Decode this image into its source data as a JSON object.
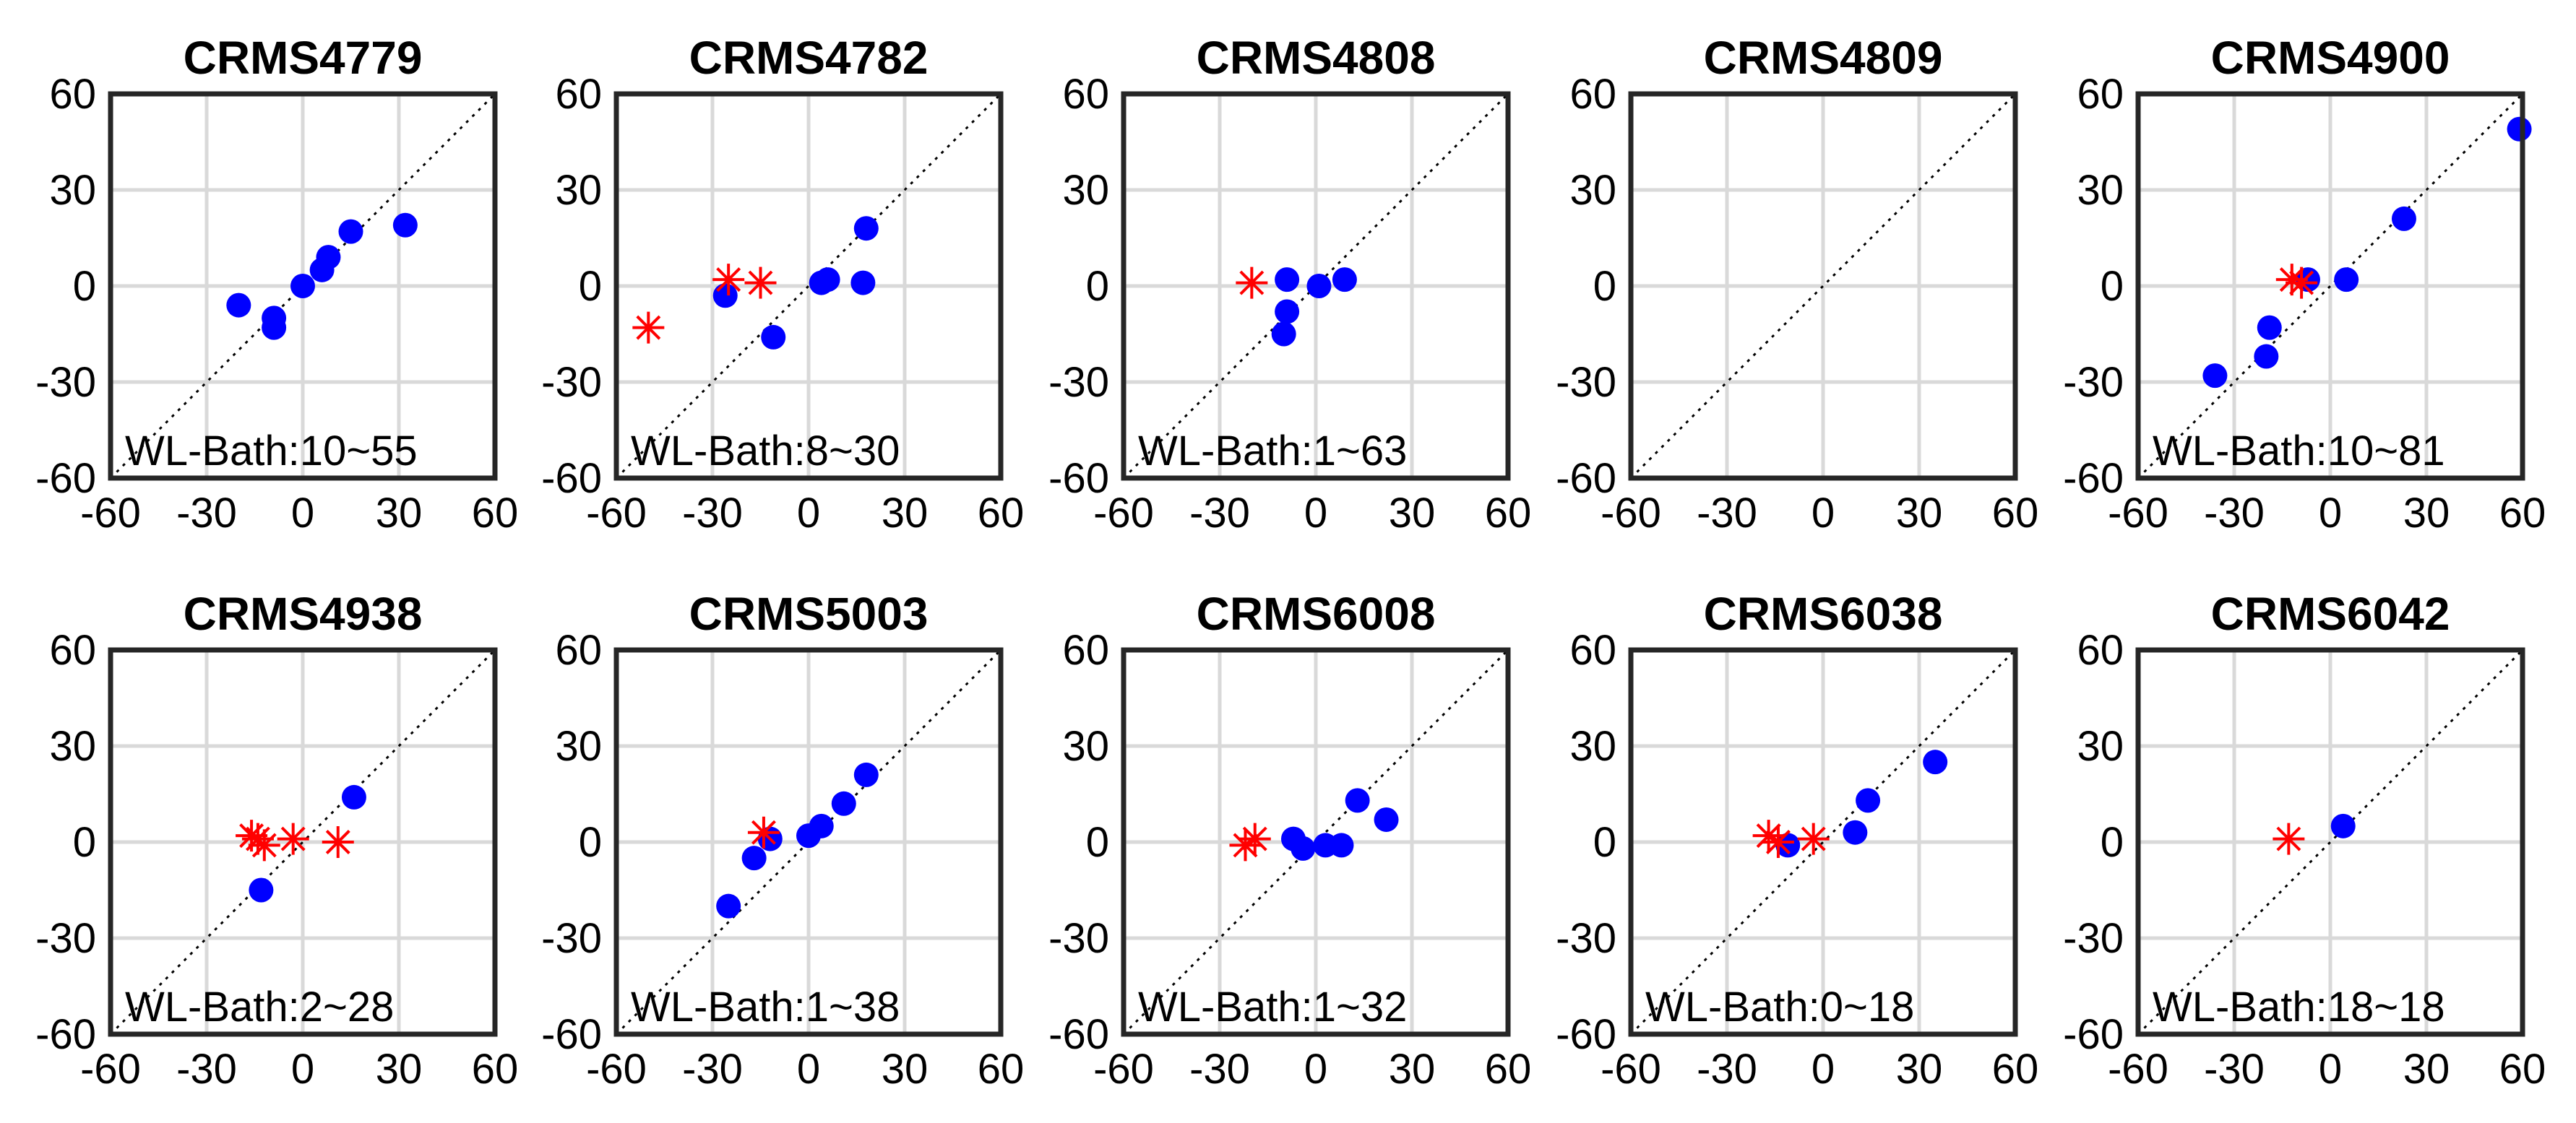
{
  "chart_data": [
    {
      "type": "scatter",
      "title": "CRMS4779",
      "xlim": [
        -60,
        60
      ],
      "ylim": [
        -60,
        60
      ],
      "xticks": [
        "-60",
        "-30",
        "0",
        "30",
        "60"
      ],
      "yticks": [
        "60",
        "30",
        "0",
        "-30",
        "-60"
      ],
      "annotation": "WL-Bath:10~55",
      "series": [
        {
          "name": "circle",
          "marker": "circle",
          "color": "#0000ff",
          "points": [
            [
              -20,
              -6
            ],
            [
              -9,
              -10
            ],
            [
              -9,
              -13
            ],
            [
              0,
              0
            ],
            [
              6,
              5
            ],
            [
              8,
              9
            ],
            [
              15,
              17
            ],
            [
              32,
              19
            ]
          ]
        },
        {
          "name": "star",
          "marker": "star",
          "color": "#ff0000",
          "points": []
        }
      ]
    },
    {
      "type": "scatter",
      "title": "CRMS4782",
      "xlim": [
        -60,
        60
      ],
      "ylim": [
        -60,
        60
      ],
      "xticks": [
        "-60",
        "-30",
        "0",
        "30",
        "60"
      ],
      "yticks": [
        "60",
        "30",
        "0",
        "-30",
        "-60"
      ],
      "annotation": "WL-Bath:8~30",
      "series": [
        {
          "name": "circle",
          "marker": "circle",
          "color": "#0000ff",
          "points": [
            [
              -26,
              -3
            ],
            [
              -11,
              -16
            ],
            [
              4,
              1
            ],
            [
              6,
              2
            ],
            [
              17,
              1
            ],
            [
              18,
              18
            ]
          ]
        },
        {
          "name": "star",
          "marker": "star",
          "color": "#ff0000",
          "points": [
            [
              -50,
              -13
            ],
            [
              -25,
              2
            ],
            [
              -15,
              1
            ]
          ]
        }
      ]
    },
    {
      "type": "scatter",
      "title": "CRMS4808",
      "xlim": [
        -60,
        60
      ],
      "ylim": [
        -60,
        60
      ],
      "xticks": [
        "-60",
        "-30",
        "0",
        "30",
        "60"
      ],
      "yticks": [
        "60",
        "30",
        "0",
        "-30",
        "-60"
      ],
      "annotation": "WL-Bath:1~63",
      "series": [
        {
          "name": "circle",
          "marker": "circle",
          "color": "#0000ff",
          "points": [
            [
              -9,
              2
            ],
            [
              -9,
              -8
            ],
            [
              -10,
              -15
            ],
            [
              1,
              0
            ],
            [
              9,
              2
            ]
          ]
        },
        {
          "name": "star",
          "marker": "star",
          "color": "#ff0000",
          "points": [
            [
              -20,
              1
            ]
          ]
        }
      ]
    },
    {
      "type": "scatter",
      "title": "CRMS4809",
      "xlim": [
        -60,
        60
      ],
      "ylim": [
        -60,
        60
      ],
      "xticks": [
        "-60",
        "-30",
        "0",
        "30",
        "60"
      ],
      "yticks": [
        "60",
        "30",
        "0",
        "-30",
        "-60"
      ],
      "annotation": "",
      "series": [
        {
          "name": "circle",
          "marker": "circle",
          "color": "#0000ff",
          "points": []
        },
        {
          "name": "star",
          "marker": "star",
          "color": "#ff0000",
          "points": []
        }
      ]
    },
    {
      "type": "scatter",
      "title": "CRMS4900",
      "xlim": [
        -60,
        60
      ],
      "ylim": [
        -60,
        60
      ],
      "xticks": [
        "-60",
        "-30",
        "0",
        "30",
        "60"
      ],
      "yticks": [
        "60",
        "30",
        "0",
        "-30",
        "-60"
      ],
      "annotation": "WL-Bath:10~81",
      "series": [
        {
          "name": "circle",
          "marker": "circle",
          "color": "#0000ff",
          "points": [
            [
              -36,
              -28
            ],
            [
              -20,
              -22
            ],
            [
              -19,
              -13
            ],
            [
              -7,
              2
            ],
            [
              5,
              2
            ],
            [
              23,
              21
            ],
            [
              59,
              49
            ]
          ]
        },
        {
          "name": "star",
          "marker": "star",
          "color": "#ff0000",
          "points": [
            [
              -12,
              2
            ],
            [
              -9,
              1
            ]
          ]
        }
      ]
    },
    {
      "type": "scatter",
      "title": "CRMS4938",
      "xlim": [
        -60,
        60
      ],
      "ylim": [
        -60,
        60
      ],
      "xticks": [
        "-60",
        "-30",
        "0",
        "30",
        "60"
      ],
      "yticks": [
        "60",
        "30",
        "0",
        "-30",
        "-60"
      ],
      "annotation": "WL-Bath:2~28",
      "series": [
        {
          "name": "circle",
          "marker": "circle",
          "color": "#0000ff",
          "points": [
            [
              -13,
              -15
            ],
            [
              16,
              14
            ]
          ]
        },
        {
          "name": "star",
          "marker": "star",
          "color": "#ff0000",
          "points": [
            [
              -16,
              2
            ],
            [
              -14,
              1
            ],
            [
              -12,
              -1
            ],
            [
              -3,
              1
            ],
            [
              11,
              0
            ]
          ]
        }
      ]
    },
    {
      "type": "scatter",
      "title": "CRMS5003",
      "xlim": [
        -60,
        60
      ],
      "ylim": [
        -60,
        60
      ],
      "xticks": [
        "-60",
        "-30",
        "0",
        "30",
        "60"
      ],
      "yticks": [
        "60",
        "30",
        "0",
        "-30",
        "-60"
      ],
      "annotation": "WL-Bath:1~38",
      "series": [
        {
          "name": "circle",
          "marker": "circle",
          "color": "#0000ff",
          "points": [
            [
              -25,
              -20
            ],
            [
              -17,
              -5
            ],
            [
              -12,
              1
            ],
            [
              0,
              2
            ],
            [
              4,
              5
            ],
            [
              11,
              12
            ],
            [
              18,
              21
            ]
          ]
        },
        {
          "name": "star",
          "marker": "star",
          "color": "#ff0000",
          "points": [
            [
              -14,
              3
            ]
          ]
        }
      ]
    },
    {
      "type": "scatter",
      "title": "CRMS6008",
      "xlim": [
        -60,
        60
      ],
      "ylim": [
        -60,
        60
      ],
      "xticks": [
        "-60",
        "-30",
        "0",
        "30",
        "60"
      ],
      "yticks": [
        "60",
        "30",
        "0",
        "-30",
        "-60"
      ],
      "annotation": "WL-Bath:1~32",
      "series": [
        {
          "name": "circle",
          "marker": "circle",
          "color": "#0000ff",
          "points": [
            [
              -7,
              1
            ],
            [
              -4,
              -2
            ],
            [
              3,
              -1
            ],
            [
              8,
              -1
            ],
            [
              13,
              13
            ],
            [
              22,
              7
            ]
          ]
        },
        {
          "name": "star",
          "marker": "star",
          "color": "#ff0000",
          "points": [
            [
              -22,
              -1
            ],
            [
              -19,
              1
            ]
          ]
        }
      ]
    },
    {
      "type": "scatter",
      "title": "CRMS6038",
      "xlim": [
        -60,
        60
      ],
      "ylim": [
        -60,
        60
      ],
      "xticks": [
        "-60",
        "-30",
        "0",
        "30",
        "60"
      ],
      "yticks": [
        "60",
        "30",
        "0",
        "-30",
        "-60"
      ],
      "annotation": "WL-Bath:0~18",
      "series": [
        {
          "name": "circle",
          "marker": "circle",
          "color": "#0000ff",
          "points": [
            [
              -11,
              -1
            ],
            [
              10,
              3
            ],
            [
              14,
              13
            ],
            [
              35,
              25
            ]
          ]
        },
        {
          "name": "star",
          "marker": "star",
          "color": "#ff0000",
          "points": [
            [
              -17,
              2
            ],
            [
              -14,
              0
            ],
            [
              -3,
              1
            ]
          ]
        }
      ]
    },
    {
      "type": "scatter",
      "title": "CRMS6042",
      "xlim": [
        -60,
        60
      ],
      "ylim": [
        -60,
        60
      ],
      "xticks": [
        "-60",
        "-30",
        "0",
        "30",
        "60"
      ],
      "yticks": [
        "60",
        "30",
        "0",
        "-30",
        "-60"
      ],
      "annotation": "WL-Bath:18~18",
      "series": [
        {
          "name": "circle",
          "marker": "circle",
          "color": "#0000ff",
          "points": [
            [
              4,
              5
            ]
          ]
        },
        {
          "name": "star",
          "marker": "star",
          "color": "#ff0000",
          "points": [
            [
              -13,
              1
            ]
          ]
        }
      ]
    }
  ]
}
